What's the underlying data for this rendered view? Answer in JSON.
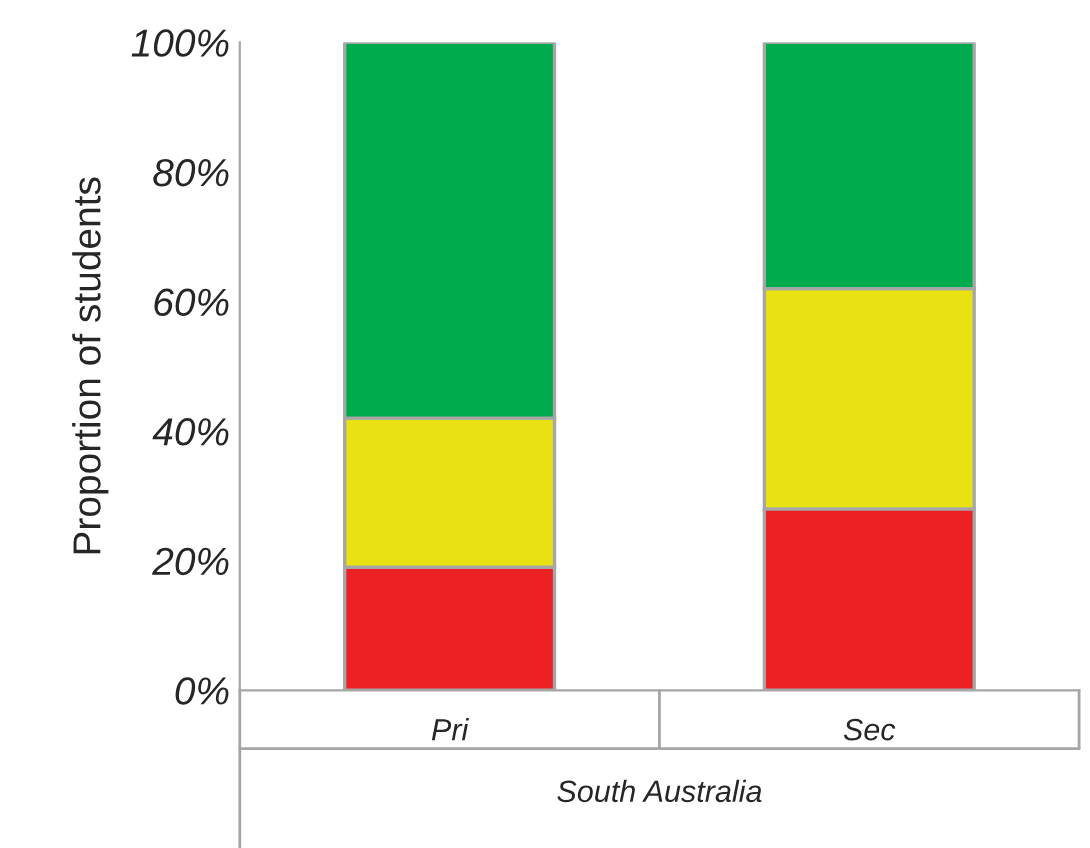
{
  "chart_data": {
    "type": "bar",
    "stacked": true,
    "ylabel": "Proportion of students",
    "xlabel": "South Australia",
    "categories": [
      "Pri",
      "Sec"
    ],
    "series": [
      {
        "color": "#ed2024",
        "values": [
          19,
          28
        ]
      },
      {
        "color": "#e8e212",
        "values": [
          23,
          34
        ]
      },
      {
        "color": "#00ab4e",
        "values": [
          58,
          38
        ]
      }
    ],
    "ylim": [
      0,
      100
    ],
    "yticks": [
      {
        "value": 0,
        "label": "0%"
      },
      {
        "value": 20,
        "label": "20%"
      },
      {
        "value": 40,
        "label": "40%"
      },
      {
        "value": 60,
        "label": "60%"
      },
      {
        "value": 80,
        "label": "80%"
      },
      {
        "value": 100,
        "label": "100%"
      }
    ],
    "grid": false,
    "legend": false
  }
}
